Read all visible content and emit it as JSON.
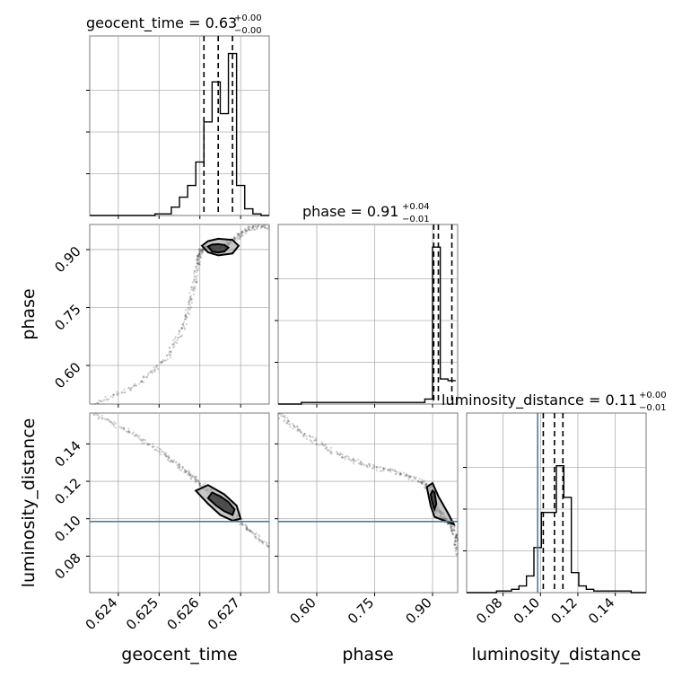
{
  "chart_data": {
    "type": "corner",
    "params": [
      {
        "key": "geocent_time",
        "label": "geocent_time",
        "range": [
          0.6233,
          0.6277
        ],
        "ticks": [
          0.624,
          0.625,
          0.626,
          0.627
        ],
        "tick_labels": [
          "0.624",
          "0.625",
          "0.626",
          "0.627"
        ],
        "title_main": "geocent_time = 0.63",
        "title_plus": "+0.00",
        "title_minus": "−0.00",
        "quantiles": [
          0.6261,
          0.62645,
          0.6268
        ],
        "truth": null,
        "hist_edges": [
          0.6233,
          0.6235,
          0.6237,
          0.6239,
          0.6241,
          0.6243,
          0.6245,
          0.6247,
          0.6249,
          0.6251,
          0.6253,
          0.6255,
          0.6257,
          0.6259,
          0.6261,
          0.6263,
          0.6265,
          0.6267,
          0.6269,
          0.6271,
          0.6273,
          0.6275,
          0.6277
        ],
        "hist_counts": [
          0,
          0,
          0,
          0,
          0,
          0,
          0,
          0,
          1,
          1,
          5,
          11,
          18,
          32,
          56,
          80,
          61,
          97,
          18,
          4,
          1,
          0
        ],
        "hist_ymax": 100
      },
      {
        "key": "phase",
        "label": "phase",
        "range": [
          0.5,
          0.965
        ],
        "ticks": [
          0.6,
          0.75,
          0.9
        ],
        "tick_labels": [
          "0.60",
          "0.75",
          "0.90"
        ],
        "title_main": "phase = 0.91",
        "title_plus": "+0.04",
        "title_minus": "−0.01",
        "quantiles": [
          0.903,
          0.915,
          0.95
        ],
        "truth": null,
        "hist_edges": [
          0.5,
          0.52,
          0.54,
          0.56,
          0.58,
          0.6,
          0.62,
          0.64,
          0.66,
          0.68,
          0.7,
          0.72,
          0.74,
          0.76,
          0.78,
          0.8,
          0.82,
          0.84,
          0.86,
          0.88,
          0.9,
          0.92,
          0.94,
          0.96
        ],
        "hist_counts": [
          0,
          0,
          0,
          1,
          1,
          1,
          1,
          1,
          1,
          1,
          1,
          1,
          1,
          1,
          1,
          1,
          1,
          1,
          1,
          3,
          94,
          15,
          14
        ],
        "hist_ymax": 100
      },
      {
        "key": "luminosity_distance",
        "label": "luminosity_distance",
        "range": [
          0.0605,
          0.1565
        ],
        "ticks": [
          0.08,
          0.1,
          0.12,
          0.14
        ],
        "tick_labels": [
          "0.08",
          "0.10",
          "0.12",
          "0.14"
        ],
        "title_main": "luminosity_distance = 0.11",
        "title_plus": "+0.00",
        "title_minus": "−0.01",
        "quantiles": [
          0.1015,
          0.1075,
          0.112
        ],
        "truth": 0.0985,
        "hist_edges": [
          0.0605,
          0.0645,
          0.0685,
          0.0725,
          0.0765,
          0.0805,
          0.0845,
          0.0885,
          0.0925,
          0.0965,
          0.1005,
          0.1045,
          0.1085,
          0.1125,
          0.1165,
          0.1205,
          0.1245,
          0.1285,
          0.1325,
          0.1365,
          0.1405,
          0.1445,
          0.1485,
          0.1525,
          0.1565
        ],
        "hist_counts": [
          0,
          0,
          0,
          0,
          1,
          1,
          2,
          4,
          10,
          27,
          48,
          48,
          76,
          57,
          12,
          4,
          2,
          1,
          1,
          1,
          1,
          1,
          0,
          0
        ],
        "hist_ymax": 100
      }
    ],
    "contours": {
      "phase_vs_geocent_time": [
        {
          "level": "inner",
          "points": [
            [
              0.6262,
              0.908
            ],
            [
              0.6263,
              0.895
            ],
            [
              0.62645,
              0.892
            ],
            [
              0.6266,
              0.895
            ],
            [
              0.6267,
              0.905
            ],
            [
              0.6266,
              0.912
            ],
            [
              0.62645,
              0.914
            ],
            [
              0.6263,
              0.913
            ]
          ]
        },
        {
          "level": "outer",
          "points": [
            [
              0.62605,
              0.91
            ],
            [
              0.6262,
              0.893
            ],
            [
              0.62645,
              0.885
            ],
            [
              0.6268,
              0.89
            ],
            [
              0.62695,
              0.91
            ],
            [
              0.6268,
              0.925
            ],
            [
              0.62645,
              0.928
            ],
            [
              0.6262,
              0.922
            ]
          ]
        }
      ],
      "luminosity_distance_vs_geocent_time": [
        {
          "level": "inner",
          "points": [
            [
              0.6262,
              0.111
            ],
            [
              0.6264,
              0.107
            ],
            [
              0.6266,
              0.104
            ],
            [
              0.6268,
              0.102
            ],
            [
              0.62685,
              0.105
            ],
            [
              0.6267,
              0.109
            ],
            [
              0.6265,
              0.112
            ],
            [
              0.6263,
              0.114
            ]
          ]
        },
        {
          "level": "outer",
          "points": [
            [
              0.6259,
              0.115
            ],
            [
              0.6262,
              0.108
            ],
            [
              0.6265,
              0.102
            ],
            [
              0.6268,
              0.099
            ],
            [
              0.627,
              0.1
            ],
            [
              0.6269,
              0.107
            ],
            [
              0.6266,
              0.113
            ],
            [
              0.6262,
              0.118
            ]
          ]
        }
      ],
      "luminosity_distance_vs_phase": [
        {
          "level": "inner",
          "points": [
            [
              0.895,
              0.113
            ],
            [
              0.9,
              0.108
            ],
            [
              0.905,
              0.105
            ],
            [
              0.91,
              0.108
            ],
            [
              0.905,
              0.114
            ],
            [
              0.9,
              0.115
            ]
          ]
        },
        {
          "level": "outer",
          "points": [
            [
              0.885,
              0.117
            ],
            [
              0.895,
              0.107
            ],
            [
              0.905,
              0.101
            ],
            [
              0.93,
              0.099
            ],
            [
              0.955,
              0.097
            ],
            [
              0.94,
              0.103
            ],
            [
              0.915,
              0.112
            ],
            [
              0.9,
              0.119
            ]
          ]
        }
      ]
    },
    "scatter_paths": {
      "phase_vs_geocent_time": [
        [
          0.6234,
          0.5
        ],
        [
          0.6245,
          0.55
        ],
        [
          0.6252,
          0.62
        ],
        [
          0.6256,
          0.7
        ],
        [
          0.6258,
          0.78
        ],
        [
          0.62595,
          0.86
        ],
        [
          0.626,
          0.895
        ],
        [
          0.6262,
          0.905
        ],
        [
          0.6266,
          0.91
        ],
        [
          0.6269,
          0.93
        ],
        [
          0.6272,
          0.955
        ],
        [
          0.6277,
          0.96
        ]
      ],
      "luminosity_distance_vs_geocent_time": [
        [
          0.6234,
          0.156
        ],
        [
          0.6243,
          0.146
        ],
        [
          0.6251,
          0.135
        ],
        [
          0.6256,
          0.126
        ],
        [
          0.626,
          0.119
        ],
        [
          0.6264,
          0.112
        ],
        [
          0.6268,
          0.103
        ],
        [
          0.6272,
          0.094
        ],
        [
          0.6277,
          0.085
        ]
      ],
      "luminosity_distance_vs_phase": [
        [
          0.5,
          0.156
        ],
        [
          0.56,
          0.146
        ],
        [
          0.64,
          0.136
        ],
        [
          0.72,
          0.129
        ],
        [
          0.8,
          0.125
        ],
        [
          0.87,
          0.12
        ],
        [
          0.9,
          0.115
        ],
        [
          0.91,
          0.105
        ],
        [
          0.93,
          0.1
        ],
        [
          0.95,
          0.097
        ],
        [
          0.96,
          0.09
        ],
        [
          0.965,
          0.08
        ]
      ]
    },
    "grid": true
  }
}
